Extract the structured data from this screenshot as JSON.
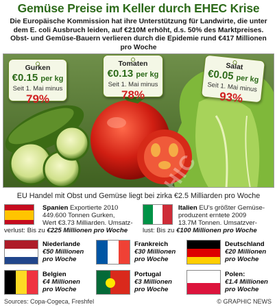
{
  "title": "Gemüse Preise im Keller durch EHEC Krise",
  "intro": "Die Europäische Kommission hat ihre Unterstützung für Landwirte, die unter dem E. coli Ausbruch leiden, auf €210M erhöht, d.s. 50% des Marktpreises. Obst- und Gemüse-Bauern verlieren durch die Epidemie rund €417 Millionen pro Woche",
  "tags": [
    {
      "name": "Gurken",
      "price": "€0.15",
      "unit": "per kg",
      "since": "Seit 1. Mai minus",
      "pct": "79%"
    },
    {
      "name": "Tomaten",
      "price": "€0.13",
      "unit": "per kg",
      "since": "Seit 1. Mai minus",
      "pct": "78%"
    },
    {
      "name": "Salat",
      "price": "€0.05",
      "unit": "per kg",
      "since": "Seit 1. Mai minus",
      "pct": "93%"
    }
  ],
  "watermark": "GRAPHIC NEWS",
  "trade_line": "EU Handel mit Obst und Gemüse liegt bei zirka €2.5 Milliarden pro Woche",
  "big_countries": [
    {
      "country": "Spanien",
      "line1": "Exportierte 2010",
      "line2": "449.600 Tonnen Gurken,",
      "line3": "Wert €3.73 Milliarden. Umsatz-",
      "loss_label": "verlust: Bis zu",
      "loss": "€225 Millionen pro Woche"
    },
    {
      "country": "Italien",
      "line1": "EU's größter Gemüse-",
      "line2": "produzent erntete 2009",
      "line3": "13.7M Tonnen. Umsatzver-",
      "loss_label": "lust: Bis zu",
      "loss": "€100 Millionen pro Woche"
    }
  ],
  "countries": [
    {
      "name": "Niederlande",
      "amount": "€50 Millionen",
      "period": "pro Woche"
    },
    {
      "name": "Frankreich",
      "amount": "€30 Millionen",
      "period": "pro Woche"
    },
    {
      "name": "Deutschland",
      "amount": "€20 Millionen",
      "period": "pro Woche"
    },
    {
      "name": "Belgien",
      "amount": "€4 Millionen",
      "period": "pro Woche"
    },
    {
      "name": "Portugal",
      "amount": "€3 Millionen",
      "period": "pro Woche"
    },
    {
      "name": "Polen:",
      "amount": "€1.4 Millionen",
      "period": "pro Woche"
    }
  ],
  "sources": "Sources: Copa-Cogeca, Freshfel",
  "credit": "© GRAPHIC NEWS",
  "colors": {
    "title_green": "#2d6a1a",
    "percent_red": "#d02020"
  }
}
